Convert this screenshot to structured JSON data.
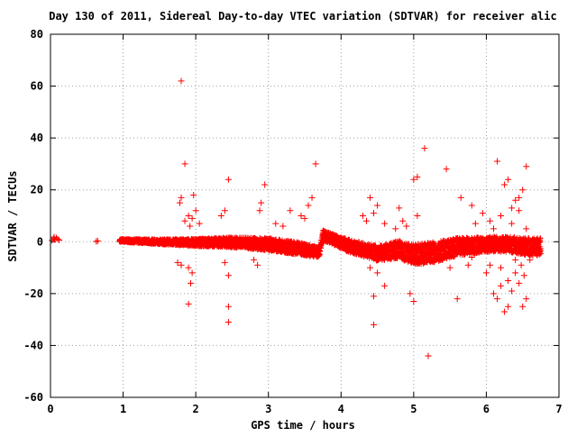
{
  "chart_data": {
    "type": "scatter",
    "title": "Day 130 of 2011, Sidereal Day-to-day VTEC variation (SDTVAR) for receiver alic",
    "xlabel": "GPS time / hours",
    "ylabel": "SDTVAR / TECUs",
    "xlim": [
      0,
      7
    ],
    "ylim": [
      -60,
      80
    ],
    "x_ticks": [
      "0",
      "1",
      "2",
      "3",
      "4",
      "5",
      "6",
      "7"
    ],
    "y_ticks": [
      "-60",
      "-40",
      "-20",
      "0",
      "20",
      "40",
      "60",
      "80"
    ],
    "grid": true,
    "marker": "plus",
    "color": "#ff0000",
    "band": {
      "name": "dense",
      "x": [
        0.95,
        1.5,
        2.0,
        2.5,
        3.0,
        3.4,
        3.7,
        3.75,
        4.1,
        4.5,
        4.8,
        5.0,
        5.3,
        5.6,
        6.0,
        6.3,
        6.6,
        6.75
      ],
      "center": [
        0.5,
        0.0,
        -0.3,
        -0.2,
        -1.0,
        -2.5,
        -4.2,
        2.5,
        -1.5,
        -4.5,
        -3.0,
        -5.0,
        -4.0,
        -2.0,
        -1.0,
        -1.0,
        -2.0,
        -2.0
      ],
      "half_width": [
        0.6,
        1.0,
        1.5,
        2.0,
        2.5,
        2.5,
        2.0,
        2.0,
        2.5,
        3.0,
        3.5,
        4.0,
        4.0,
        3.5,
        3.0,
        3.0,
        3.5,
        3.5
      ]
    },
    "points": [
      [
        0.02,
        0.5
      ],
      [
        0.04,
        1.2
      ],
      [
        0.06,
        0.8
      ],
      [
        0.08,
        1.5
      ],
      [
        0.1,
        1.0
      ],
      [
        0.12,
        0.6
      ],
      [
        0.05,
        1.8
      ],
      [
        0.65,
        0.3
      ],
      [
        0.63,
        0.1
      ],
      [
        1.8,
        62
      ],
      [
        1.85,
        30
      ],
      [
        1.8,
        17
      ],
      [
        1.78,
        15
      ],
      [
        1.85,
        8
      ],
      [
        1.9,
        10
      ],
      [
        1.95,
        9
      ],
      [
        1.97,
        18
      ],
      [
        2.0,
        12
      ],
      [
        2.05,
        7
      ],
      [
        1.92,
        6
      ],
      [
        1.75,
        -8
      ],
      [
        1.8,
        -9
      ],
      [
        1.9,
        -10
      ],
      [
        1.95,
        -12
      ],
      [
        1.93,
        -16
      ],
      [
        1.9,
        -24
      ],
      [
        2.45,
        24
      ],
      [
        2.4,
        12
      ],
      [
        2.35,
        10
      ],
      [
        2.45,
        -25
      ],
      [
        2.45,
        -31
      ],
      [
        2.4,
        -8
      ],
      [
        2.45,
        -13
      ],
      [
        2.95,
        22
      ],
      [
        2.9,
        15
      ],
      [
        2.88,
        12
      ],
      [
        3.1,
        7
      ],
      [
        2.8,
        -7
      ],
      [
        2.85,
        -9
      ],
      [
        3.65,
        30
      ],
      [
        3.6,
        17
      ],
      [
        3.55,
        14
      ],
      [
        3.5,
        9
      ],
      [
        3.3,
        12
      ],
      [
        3.45,
        10
      ],
      [
        3.2,
        6
      ],
      [
        4.35,
        8
      ],
      [
        4.4,
        17
      ],
      [
        4.5,
        14
      ],
      [
        4.45,
        11
      ],
      [
        4.6,
        7
      ],
      [
        4.3,
        10
      ],
      [
        4.45,
        -21
      ],
      [
        4.45,
        -32
      ],
      [
        4.5,
        -12
      ],
      [
        4.4,
        -10
      ],
      [
        4.6,
        -17
      ],
      [
        4.8,
        13
      ],
      [
        4.85,
        8
      ],
      [
        4.75,
        5
      ],
      [
        4.9,
        6
      ],
      [
        5.0,
        24
      ],
      [
        5.05,
        25
      ],
      [
        5.15,
        36
      ],
      [
        5.05,
        10
      ],
      [
        4.95,
        -20
      ],
      [
        5.0,
        -23
      ],
      [
        5.2,
        -44
      ],
      [
        5.05,
        -8
      ],
      [
        5.45,
        28
      ],
      [
        5.65,
        17
      ],
      [
        5.6,
        -22
      ],
      [
        5.5,
        -10
      ],
      [
        5.8,
        14
      ],
      [
        5.95,
        11
      ],
      [
        5.85,
        7
      ],
      [
        5.75,
        -9
      ],
      [
        5.8,
        -6
      ],
      [
        6.15,
        31
      ],
      [
        6.25,
        22
      ],
      [
        6.3,
        24
      ],
      [
        6.35,
        13
      ],
      [
        6.4,
        16
      ],
      [
        6.45,
        17
      ],
      [
        6.2,
        10
      ],
      [
        6.55,
        29
      ],
      [
        6.5,
        20
      ],
      [
        6.45,
        12
      ],
      [
        6.1,
        5
      ],
      [
        6.05,
        8
      ],
      [
        6.35,
        7
      ],
      [
        6.55,
        5
      ],
      [
        6.1,
        -20
      ],
      [
        6.15,
        -22
      ],
      [
        6.2,
        -17
      ],
      [
        6.3,
        -15
      ],
      [
        6.25,
        -27
      ],
      [
        6.3,
        -25
      ],
      [
        6.35,
        -19
      ],
      [
        6.4,
        -12
      ],
      [
        6.45,
        -16
      ],
      [
        6.5,
        -25
      ],
      [
        6.55,
        -22
      ],
      [
        6.48,
        -9
      ],
      [
        6.52,
        -13
      ],
      [
        6.0,
        -12
      ],
      [
        6.05,
        -9
      ],
      [
        6.2,
        -10
      ],
      [
        6.6,
        -7
      ],
      [
        6.4,
        -7
      ]
    ]
  }
}
